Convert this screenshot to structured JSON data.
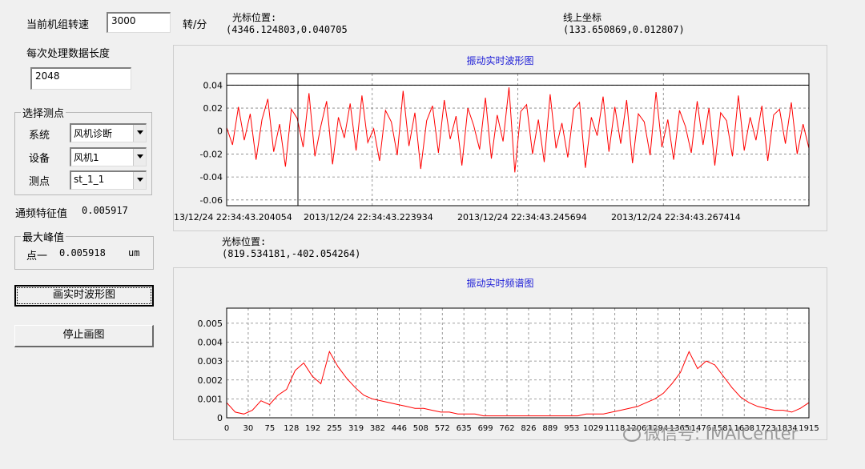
{
  "top": {
    "speed_label": "当前机组转速",
    "speed_value": "3000",
    "speed_unit": "转/分",
    "cursor_label": "光标位置:",
    "cursor_value": "(4346.124803,0.040705",
    "line_label": "线上坐标",
    "line_value": "(133.650869,0.012807)"
  },
  "left": {
    "length_label": "每次处理数据长度",
    "length_value": "2048",
    "group_title": "选择测点",
    "system_label": "系统",
    "system_value": "风机诊断",
    "device_label": "设备",
    "device_value": "风机1",
    "point_label": "测点",
    "point_value": "st_1_1",
    "passband_label": "通频特征值",
    "passband_value": "0.005917",
    "peak_group_title": "最大峰值",
    "peak_label": "点一",
    "peak_value": "0.005918",
    "peak_unit": "um",
    "draw_button": "画实时波形图",
    "stop_button": "停止画图"
  },
  "spectrum_cursor": {
    "label": "光标位置:",
    "value": "(819.534181,-402.054264)"
  },
  "watermark": "微信号: IMAICenter",
  "colors": {
    "signal": "#ff0000",
    "title": "#1a1ad6",
    "grid": "#808080"
  },
  "chart_data": [
    {
      "type": "line",
      "title": "振动实时波形图",
      "ylim": [
        -0.065,
        0.05
      ],
      "yticks": [
        0.04,
        0.02,
        0,
        -0.02,
        -0.04,
        -0.06
      ],
      "ytick_labels": [
        "0.04",
        "0.02",
        "0",
        "-0.02",
        "-0.04",
        "-0.06"
      ],
      "xtick_labels": [
        "13/12/24 22:34:43.204054",
        "2013/12/24 22:34:43.223934",
        "2013/12/24 22:34:43.245694",
        "2013/12/24 22:34:43.267414"
      ],
      "cursor_line_y": 0.04,
      "grid": true,
      "series": [
        {
          "values": [
            0.003,
            -0.012,
            0.021,
            -0.008,
            0.015,
            -0.025,
            0.01,
            0.028,
            -0.018,
            0.006,
            -0.031,
            0.019,
            0.011,
            -0.014,
            0.033,
            -0.022,
            0.004,
            0.026,
            -0.029,
            0.012,
            -0.006,
            0.024,
            -0.017,
            0.031,
            -0.01,
            0.002,
            -0.026,
            0.018,
            0.008,
            -0.021,
            0.035,
            -0.013,
            0.016,
            -0.033,
            0.009,
            0.022,
            -0.019,
            0.027,
            -0.007,
            0.013,
            -0.03,
            0.02,
            0.005,
            -0.016,
            0.029,
            -0.024,
            0.014,
            -0.009,
            0.038,
            -0.036,
            0.017,
            0.023,
            -0.02,
            0.01,
            -0.027,
            0.032,
            -0.015,
            0.007,
            -0.023,
            0.019,
            0.025,
            -0.032,
            0.012,
            -0.004,
            0.03,
            -0.018,
            0.021,
            -0.011,
            0.027,
            -0.028,
            0.015,
            0.008,
            -0.021,
            0.034,
            -0.014,
            0.01,
            -0.025,
            0.018,
            0.004,
            -0.019,
            0.026,
            -0.012,
            0.02,
            -0.03,
            0.016,
            0.009,
            -0.022,
            0.031,
            -0.017,
            0.012,
            -0.008,
            0.022,
            -0.026,
            0.014,
            0.019,
            -0.011,
            0.025,
            -0.02,
            0.006,
            -0.015
          ]
        }
      ]
    },
    {
      "type": "line",
      "title": "振动实时频谱图",
      "ylim": [
        0,
        0.0058
      ],
      "yticks": [
        0,
        0.001,
        0.002,
        0.003,
        0.004,
        0.005
      ],
      "ytick_labels": [
        "0",
        "0.001",
        "0.002",
        "0.003",
        "0.004",
        "0.005"
      ],
      "xtick_labels": [
        "0",
        "30",
        "75",
        "128",
        "192",
        "255",
        "319",
        "382",
        "446",
        "508",
        "572",
        "635",
        "699",
        "762",
        "826",
        "889",
        "953",
        "1029",
        "1118",
        "1206",
        "1294",
        "1365",
        "1476",
        "1581",
        "1638",
        "1723",
        "1834",
        "1915"
      ],
      "grid": true,
      "series": [
        {
          "values": [
            0.0008,
            0.0003,
            0.0002,
            0.0004,
            0.0009,
            0.0007,
            0.0012,
            0.0015,
            0.0025,
            0.0029,
            0.0022,
            0.0018,
            0.0035,
            0.0027,
            0.0021,
            0.0016,
            0.0012,
            0.001,
            0.0009,
            0.0008,
            0.0007,
            0.0006,
            0.0005,
            0.0005,
            0.0004,
            0.0003,
            0.0003,
            0.0002,
            0.0002,
            0.0002,
            0.0001,
            0.0001,
            0.0001,
            0.0001,
            0.0001,
            0.0001,
            0.0001,
            0.0001,
            0.0001,
            0.0001,
            0.0001,
            0.0001,
            0.0002,
            0.0002,
            0.0002,
            0.0003,
            0.0004,
            0.0005,
            0.0006,
            0.0008,
            0.001,
            0.0013,
            0.0018,
            0.0024,
            0.0035,
            0.0026,
            0.003,
            0.0028,
            0.0022,
            0.0016,
            0.0011,
            0.0008,
            0.0006,
            0.0005,
            0.0004,
            0.0004,
            0.0003,
            0.0005,
            0.0008
          ]
        }
      ]
    }
  ]
}
